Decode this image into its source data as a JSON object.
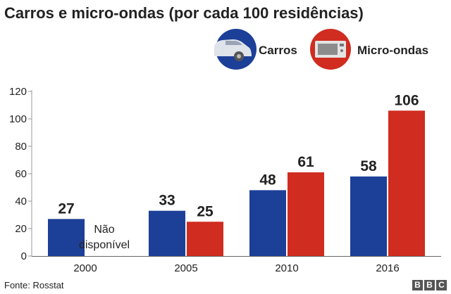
{
  "chart_data": {
    "type": "bar",
    "title": "Carros e micro-ondas (por cada 100 residências)",
    "categories": [
      "2000",
      "2005",
      "2010",
      "2016"
    ],
    "series": [
      {
        "name": "Carros",
        "values": [
          27,
          33,
          48,
          58
        ],
        "color": "#1c3f98"
      },
      {
        "name": "Micro-ondas",
        "values": [
          null,
          25,
          61,
          106
        ],
        "color": "#d02c20"
      }
    ],
    "ylim": [
      0,
      120
    ],
    "yticks": [
      0,
      20,
      40,
      60,
      80,
      100,
      120
    ],
    "grid": false,
    "legend": "top-right",
    "annotations": [
      {
        "category": "2000",
        "series": "Micro-ondas",
        "text": [
          "Não",
          "disponível"
        ]
      }
    ],
    "icons": {
      "Carros": "car-icon",
      "Micro-ondas": "microwave-icon"
    }
  },
  "source": "Fonte: Rosstat",
  "logo": [
    "B",
    "B",
    "C"
  ]
}
